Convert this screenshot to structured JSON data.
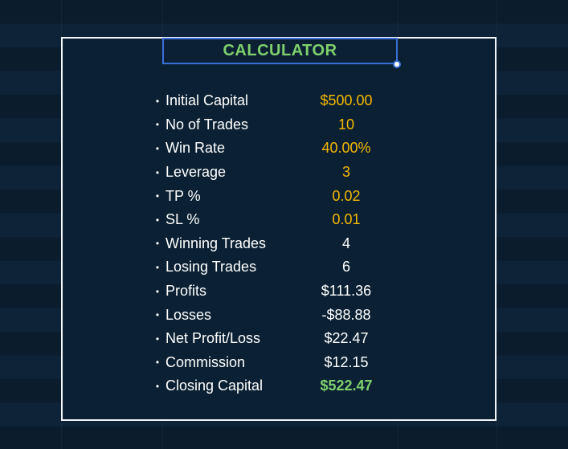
{
  "title": "CALCULATOR",
  "bullet_glyph": "•",
  "colors": {
    "background": "#0b2133",
    "border": "#f2f5f8",
    "title": "#7fcf6e",
    "input_value": "#f5b800",
    "computed_value": "#ffffff",
    "result_value": "#7fcf6e",
    "selection": "#3b6fd8"
  },
  "rows": [
    {
      "label": "Initial Capital",
      "value": "$500.00",
      "kind": "input"
    },
    {
      "label": "No of Trades",
      "value": "10",
      "kind": "input"
    },
    {
      "label": "Win Rate",
      "value": "40.00%",
      "kind": "input"
    },
    {
      "label": "Leverage",
      "value": "3",
      "kind": "input"
    },
    {
      "label": "TP %",
      "value": "0.02",
      "kind": "input"
    },
    {
      "label": "SL %",
      "value": "0.01",
      "kind": "input"
    },
    {
      "label": "Winning Trades",
      "value": "4",
      "kind": "computed"
    },
    {
      "label": "Losing Trades",
      "value": "6",
      "kind": "computed"
    },
    {
      "label": "Profits",
      "value": "$111.36",
      "kind": "computed"
    },
    {
      "label": "Losses",
      "value": "-$88.88",
      "kind": "computed"
    },
    {
      "label": "Net Profit/Loss",
      "value": "$22.47",
      "kind": "computed"
    },
    {
      "label": "Commission",
      "value": "$12.15",
      "kind": "computed"
    },
    {
      "label": "Closing Capital",
      "value": "$522.47",
      "kind": "result"
    }
  ]
}
